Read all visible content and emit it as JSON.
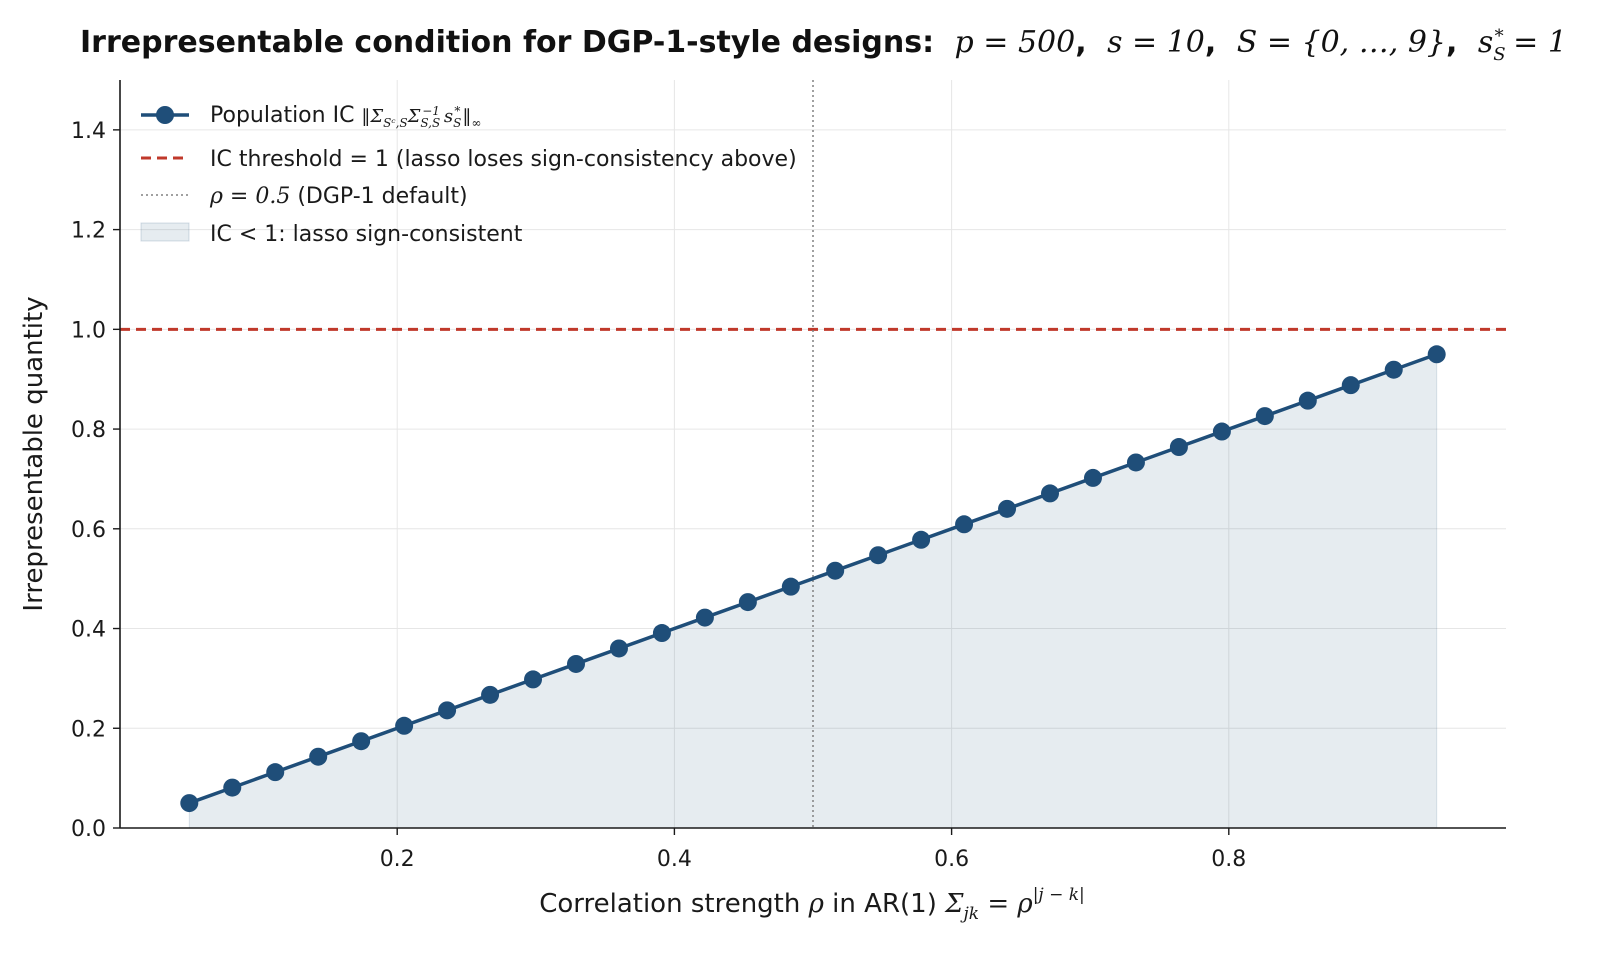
{
  "chart_data": {
    "type": "line",
    "title": "Irrepresentable condition for DGP-1-style designs: p = 500, s = 10, S = {0, …, 9}, s*_S = 1",
    "title_parts": {
      "bold": "Irrepresentable condition for DGP-1-style designs:",
      "p": "p = 500",
      "s": "s = 10",
      "S": "S = {0, …, 9}",
      "sS": "s",
      "sS_sub": "S",
      "sS_sup": "*",
      "sS_val": " = 1",
      "sep": ","
    },
    "xlabel": "Correlation strength ρ in AR(1) Σjk = ρ|j − k|",
    "xlabel_parts": {
      "lead": "Correlation strength ",
      "rho": "ρ",
      "mid": " in AR(1) ",
      "sigma": "Σ",
      "sigma_sub": "jk",
      "eq": " = ρ",
      "sup": "|j − k|"
    },
    "ylabel": "Irrepresentable quantity",
    "xlim": [
      0.0,
      1.0
    ],
    "ylim": [
      0.0,
      1.5
    ],
    "xticks": [
      0.2,
      0.4,
      0.6,
      0.8
    ],
    "xtick_labels": [
      "0.2",
      "0.4",
      "0.6",
      "0.8"
    ],
    "yticks": [
      0.0,
      0.2,
      0.4,
      0.6,
      0.8,
      1.0,
      1.2,
      1.4
    ],
    "ytick_labels": [
      "0.0",
      "0.2",
      "0.4",
      "0.6",
      "0.8",
      "1.0",
      "1.2",
      "1.4"
    ],
    "grid": true,
    "legend_position": "upper-left",
    "series": [
      {
        "name": "Population IC ‖ΣSc,S ΣS,S⁻¹ s*S‖∞",
        "color": "#1f4e79",
        "marker": "circle",
        "x": [
          0.05,
          0.081,
          0.112,
          0.143,
          0.174,
          0.205,
          0.236,
          0.267,
          0.298,
          0.329,
          0.36,
          0.391,
          0.422,
          0.453,
          0.484,
          0.516,
          0.547,
          0.578,
          0.609,
          0.64,
          0.671,
          0.702,
          0.733,
          0.764,
          0.795,
          0.826,
          0.857,
          0.888,
          0.919,
          0.95
        ],
        "y": [
          0.05,
          0.081,
          0.112,
          0.143,
          0.174,
          0.205,
          0.236,
          0.267,
          0.298,
          0.329,
          0.36,
          0.391,
          0.422,
          0.453,
          0.484,
          0.516,
          0.547,
          0.578,
          0.609,
          0.64,
          0.671,
          0.702,
          0.733,
          0.764,
          0.795,
          0.826,
          0.857,
          0.888,
          0.919,
          0.95
        ]
      }
    ],
    "reference_lines": [
      {
        "orientation": "horizontal",
        "value": 1.0,
        "style": "dashed",
        "color": "#c0392b",
        "name": "IC threshold = 1 (lasso loses sign-consistency above)"
      },
      {
        "orientation": "vertical",
        "value": 0.5,
        "style": "dotted",
        "color": "#808080",
        "name": "ρ = 0.5 (DGP-1 default)"
      }
    ],
    "fill": {
      "name": "IC < 1: lasso sign-consistent",
      "color": "#1f4e79",
      "under_series": 0
    },
    "legend": {
      "ic_lead": "Population IC ",
      "ic_math": "‖Σ",
      "ic_math_sub1": "Sᶜ,S",
      "ic_math_mid": "Σ",
      "ic_math_sub2": "S,S",
      "ic_math_sup2": "−1",
      "ic_math_s": "s",
      "ic_math_sub3": "S",
      "ic_math_sup3": "*",
      "ic_math_end": "‖",
      "ic_math_sub4": "∞",
      "threshold": "IC threshold = 1 (lasso loses sign-consistency above)",
      "rho_math": "ρ = 0.5",
      "rho_rest": " (DGP-1 default)",
      "fill": "IC < 1: lasso sign-consistent"
    }
  }
}
